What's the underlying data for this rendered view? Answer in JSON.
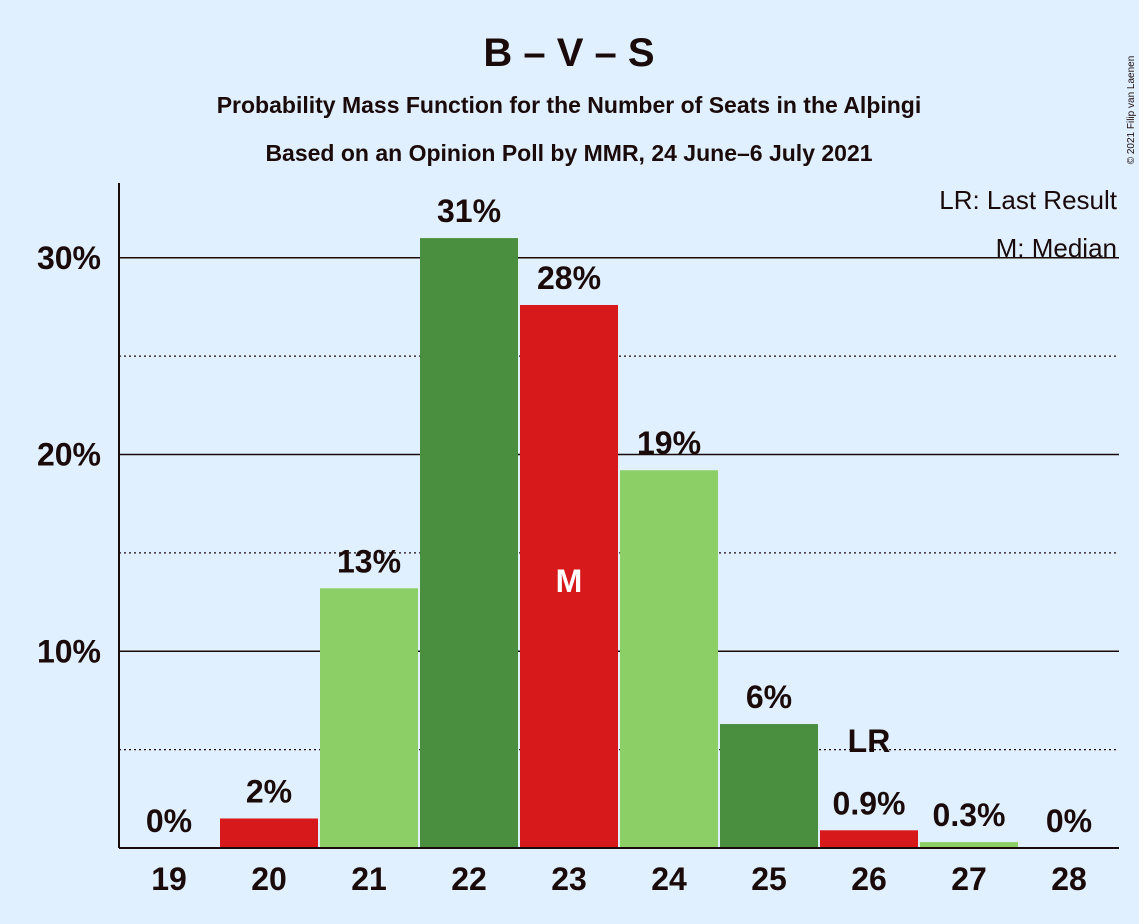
{
  "chart_data": {
    "type": "bar",
    "title": "B – V – S",
    "subtitle_1": "Probability Mass Function for the Number of Seats in the Alþingi",
    "subtitle_2": "Based on an Opinion Poll by MMR, 24 June–6 July 2021",
    "categories": [
      "19",
      "20",
      "21",
      "22",
      "23",
      "24",
      "25",
      "26",
      "27",
      "28"
    ],
    "values": [
      0,
      1.5,
      13.2,
      31.0,
      27.6,
      19.2,
      6.3,
      0.9,
      0.3,
      0
    ],
    "value_labels": [
      "0%",
      "2%",
      "13%",
      "31%",
      "28%",
      "19%",
      "6%",
      "0.9%",
      "0.3%",
      "0%"
    ],
    "bar_colors": [
      "#8ccf66",
      "#d7191c",
      "#8ccf66",
      "#4a8f40",
      "#d7191c",
      "#8ccf66",
      "#4a8f40",
      "#d7191c",
      "#8ccf66",
      "#8ccf66"
    ],
    "ylim": [
      0,
      33.8
    ],
    "yticks": [
      10,
      20,
      30
    ],
    "ytick_labels": [
      "10%",
      "20%",
      "30%"
    ],
    "minor_gridlines": [
      5,
      15,
      25
    ],
    "median_category": "23",
    "median_marker": "M",
    "last_result_category": "26",
    "last_result_marker": "LR",
    "legend": [
      "LR: Last Result",
      "M: Median"
    ],
    "legend_position": "top-right",
    "copyright": "© 2021 Filip van Laenen"
  },
  "colors": {
    "background": "#e0f0ff",
    "light_green": "#8ccf66",
    "dark_green": "#4a8f40",
    "red": "#d7191c"
  }
}
